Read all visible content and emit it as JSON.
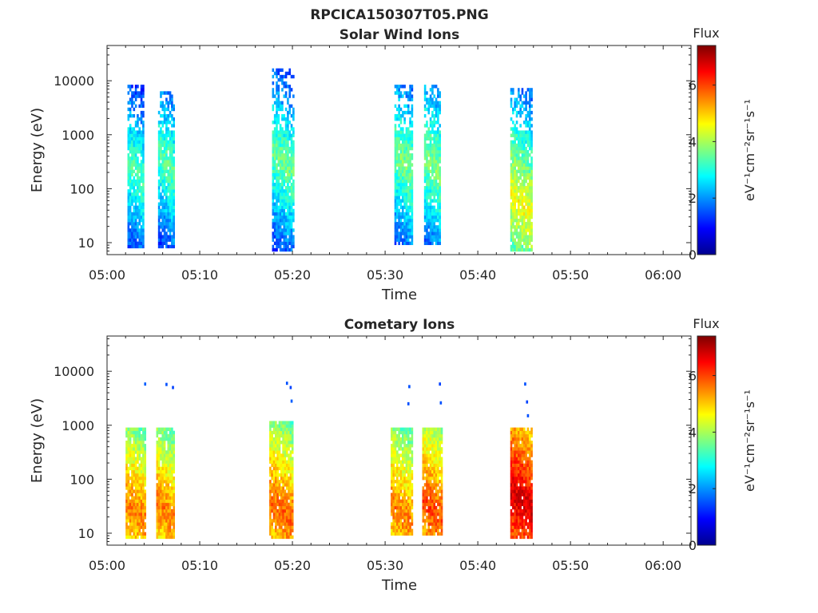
{
  "figure": {
    "title": "RPCICA150307T05.PNG"
  },
  "colormap": {
    "name": "jet",
    "stops": [
      "#00008f",
      "#0000ff",
      "#007fff",
      "#00ffff",
      "#7fff7f",
      "#ffff00",
      "#ff7f00",
      "#ff0000",
      "#7f0000"
    ]
  },
  "chart_data": [
    {
      "type": "heatmap",
      "title": "Solar Wind Ions",
      "xlabel": "Time",
      "ylabel": "Energy (eV)",
      "xticks": [
        "05:00",
        "05:10",
        "05:20",
        "05:30",
        "05:40",
        "05:50",
        "06:00"
      ],
      "xlim_minutes": [
        0,
        63
      ],
      "ylim": [
        6,
        45000
      ],
      "yscale": "log",
      "yticks": [
        {
          "value": 10,
          "label": "10"
        },
        {
          "value": 100,
          "label": "100"
        },
        {
          "value": 1000,
          "label": "1000"
        },
        {
          "value": 10000,
          "label": "10000"
        }
      ],
      "colorbar": {
        "title": "Flux",
        "label": "eV⁻¹cm⁻²sr⁻¹s⁻¹",
        "range": [
          0,
          7.4
        ],
        "ticks": [
          {
            "value": 0,
            "label": "0"
          },
          {
            "value": 2,
            "label": "2"
          },
          {
            "value": 4,
            "label": "4"
          },
          {
            "value": 6,
            "label": "6"
          }
        ]
      },
      "bursts": [
        {
          "start_min": 2.2,
          "end_min": 4.0,
          "e_low": 8,
          "e_high": 8000,
          "peak": 3.4,
          "peak_energy": 200
        },
        {
          "start_min": 5.5,
          "end_min": 7.2,
          "e_low": 8,
          "e_high": 6000,
          "peak": 3.5,
          "peak_energy": 300
        },
        {
          "start_min": 17.8,
          "end_min": 20.0,
          "e_low": 7,
          "e_high": 15000,
          "peak": 3.6,
          "peak_energy": 300
        },
        {
          "start_min": 31.0,
          "end_min": 33.0,
          "e_low": 10,
          "e_high": 8000,
          "peak": 3.7,
          "peak_energy": 300
        },
        {
          "start_min": 34.2,
          "end_min": 36.0,
          "e_low": 10,
          "e_high": 8000,
          "peak": 3.8,
          "peak_energy": 300
        },
        {
          "start_min": 43.5,
          "end_min": 45.8,
          "e_low": 7,
          "e_high": 7000,
          "peak": 4.6,
          "peak_energy": 50
        }
      ]
    },
    {
      "type": "heatmap",
      "title": "Cometary Ions",
      "xlabel": "Time",
      "ylabel": "Energy (eV)",
      "xticks": [
        "05:00",
        "05:10",
        "05:20",
        "05:30",
        "05:40",
        "05:50",
        "06:00"
      ],
      "xlim_minutes": [
        0,
        63
      ],
      "ylim": [
        6,
        45000
      ],
      "yscale": "log",
      "yticks": [
        {
          "value": 10,
          "label": "10"
        },
        {
          "value": 100,
          "label": "100"
        },
        {
          "value": 1000,
          "label": "1000"
        },
        {
          "value": 10000,
          "label": "10000"
        }
      ],
      "colorbar": {
        "title": "Flux",
        "label": "eV⁻¹cm⁻²sr⁻¹s⁻¹",
        "range": [
          0,
          7.4
        ],
        "ticks": [
          {
            "value": 0,
            "label": "0"
          },
          {
            "value": 2,
            "label": "2"
          },
          {
            "value": 4,
            "label": "4"
          },
          {
            "value": 6,
            "label": "6"
          }
        ]
      },
      "bursts": [
        {
          "start_min": 2.0,
          "end_min": 4.2,
          "e_low": 8,
          "e_high": 900,
          "peak": 5.6,
          "peak_energy": 25
        },
        {
          "start_min": 5.3,
          "end_min": 7.3,
          "e_low": 8,
          "e_high": 900,
          "peak": 5.6,
          "peak_energy": 25
        },
        {
          "start_min": 17.5,
          "end_min": 20.0,
          "e_low": 8,
          "e_high": 1100,
          "peak": 5.8,
          "peak_energy": 25
        },
        {
          "start_min": 30.6,
          "end_min": 33.0,
          "e_low": 10,
          "e_high": 800,
          "peak": 5.6,
          "peak_energy": 22
        },
        {
          "start_min": 34.0,
          "end_min": 36.2,
          "e_low": 10,
          "e_high": 900,
          "peak": 6.0,
          "peak_energy": 25
        },
        {
          "start_min": 43.5,
          "end_min": 45.8,
          "e_low": 8,
          "e_high": 900,
          "peak": 6.8,
          "peak_energy": 40
        }
      ],
      "sparse_points": [
        {
          "t_min": 4.0,
          "energy": 5800,
          "value": 1.6
        },
        {
          "t_min": 6.3,
          "energy": 5700,
          "value": 1.5
        },
        {
          "t_min": 7.0,
          "energy": 5000,
          "value": 1.4
        },
        {
          "t_min": 19.3,
          "energy": 6000,
          "value": 1.5
        },
        {
          "t_min": 19.7,
          "energy": 5000,
          "value": 1.4
        },
        {
          "t_min": 19.8,
          "energy": 2800,
          "value": 1.6
        },
        {
          "t_min": 32.5,
          "energy": 5200,
          "value": 1.5
        },
        {
          "t_min": 32.4,
          "energy": 2500,
          "value": 1.5
        },
        {
          "t_min": 35.8,
          "energy": 5800,
          "value": 1.4
        },
        {
          "t_min": 35.9,
          "energy": 2600,
          "value": 1.5
        },
        {
          "t_min": 45.0,
          "energy": 5800,
          "value": 1.5
        },
        {
          "t_min": 45.2,
          "energy": 2700,
          "value": 1.4
        },
        {
          "t_min": 45.3,
          "energy": 1500,
          "value": 1.5
        }
      ]
    }
  ]
}
